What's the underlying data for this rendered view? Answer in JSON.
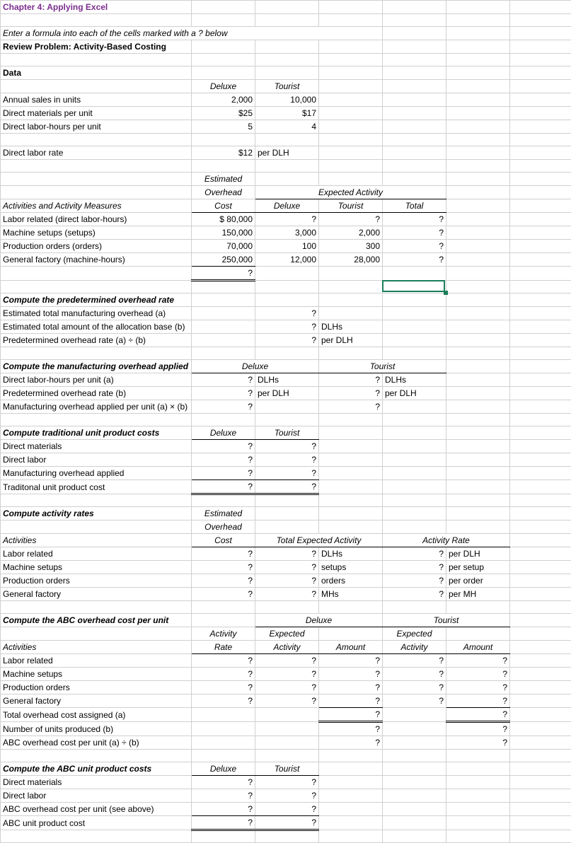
{
  "title": "Chapter 4: Applying Excel",
  "instruction": "Enter a formula into each of the cells marked with a ? below",
  "reviewProblem": "Review Problem: Activity-Based Costing",
  "dataHeader": "Data",
  "headers": {
    "deluxe": "Deluxe",
    "tourist": "Tourist",
    "total": "Total",
    "estimatedOverhead1": "Estimated",
    "estimatedOverhead2": "Overhead",
    "cost": "Cost",
    "expectedActivity": "Expected Activity",
    "activityRate": "Activity Rate",
    "activity": "Activity",
    "rate": "Rate",
    "expected": "Expected",
    "amount": "Amount",
    "totalExpectedActivity": "Total Expected Activity",
    "activities": "Activities",
    "activitiesMeasures": "Activities and Activity Measures"
  },
  "rows": {
    "annualSales": {
      "label": "Annual sales in units",
      "deluxe": "2,000",
      "tourist": "10,000"
    },
    "directMaterials": {
      "label": "Direct materials per unit",
      "deluxe": "$25",
      "tourist": "$17"
    },
    "dlhPerUnit": {
      "label": "Direct labor-hours per unit",
      "deluxe": "5",
      "tourist": "4"
    },
    "laborRate": {
      "label": "Direct labor rate",
      "amount": "$12",
      "unit": "per DLH"
    },
    "laborRelated": {
      "label": "Labor related (direct labor-hours)",
      "cost": "$     80,000",
      "deluxe": "?",
      "tourist": "?",
      "total": "?"
    },
    "machineSetups": {
      "label": "Machine setups (setups)",
      "cost": "150,000",
      "deluxe": "3,000",
      "tourist": "2,000",
      "total": "?"
    },
    "prodOrders": {
      "label": "Production orders (orders)",
      "cost": "70,000",
      "deluxe": "100",
      "tourist": "300",
      "total": "?"
    },
    "genFactory": {
      "label": "General factory (machine-hours)",
      "cost": "250,000",
      "deluxe": "12,000",
      "tourist": "28,000",
      "total": "?"
    },
    "sumQ": "?"
  },
  "sections": {
    "s1": "Compute the predetermined overhead rate",
    "s1r1": {
      "label": "Estimated total manufacturing overhead (a)",
      "v": "?"
    },
    "s1r2": {
      "label": "Estimated total amount of the allocation base (b)",
      "v": "?",
      "unit": "DLHs"
    },
    "s1r3": {
      "label": "Predetermined overhead rate (a) ÷ (b)",
      "v": "?",
      "unit": "per DLH"
    },
    "s2": "Compute the manufacturing overhead applied",
    "s2r1": {
      "label": "Direct labor-hours per unit (a)",
      "d": "?",
      "du": "DLHs",
      "t": "?",
      "tu": "DLHs"
    },
    "s2r2": {
      "label": "Predetermined overhead rate (b)",
      "d": "?",
      "du": "per DLH",
      "t": "?",
      "tu": "per DLH"
    },
    "s2r3": {
      "label": "Manufacturing overhead applied per unit (a) × (b)",
      "d": "?",
      "t": "?"
    },
    "s3": "Compute traditional unit product costs",
    "s3r1": {
      "label": "Direct materials",
      "d": "?",
      "t": "?"
    },
    "s3r2": {
      "label": "Direct labor",
      "d": "?",
      "t": "?"
    },
    "s3r3": {
      "label": "Manufacturing overhead applied",
      "d": "?",
      "t": "?"
    },
    "s3r4": {
      "label": "Traditonal unit product cost",
      "d": "?",
      "t": "?"
    },
    "s4": "Compute activity rates",
    "s4r1": {
      "label": "Labor related",
      "c": "?",
      "e": "?",
      "eu": "DLHs",
      "r": "?",
      "ru": "per DLH"
    },
    "s4r2": {
      "label": "Machine setups",
      "c": "?",
      "e": "?",
      "eu": "setups",
      "r": "?",
      "ru": "per setup"
    },
    "s4r3": {
      "label": "Production orders",
      "c": "?",
      "e": "?",
      "eu": "orders",
      "r": "?",
      "ru": "per order"
    },
    "s4r4": {
      "label": "General factory",
      "c": "?",
      "e": "?",
      "eu": "MHs",
      "r": "?",
      "ru": "per MH"
    },
    "s5": "Compute the ABC overhead cost per unit",
    "s5r1": {
      "label": "Labor related",
      "ar": "?",
      "de": "?",
      "da": "?",
      "te": "?",
      "ta": "?"
    },
    "s5r2": {
      "label": "Machine setups",
      "ar": "?",
      "de": "?",
      "da": "?",
      "te": "?",
      "ta": "?"
    },
    "s5r3": {
      "label": "Production orders",
      "ar": "?",
      "de": "?",
      "da": "?",
      "te": "?",
      "ta": "?"
    },
    "s5r4": {
      "label": "General factory",
      "ar": "?",
      "de": "?",
      "da": "?",
      "te": "?",
      "ta": "?"
    },
    "s5r5": {
      "label": "Total overhead cost assigned (a)",
      "da": "?",
      "ta": "?"
    },
    "s5r6": {
      "label": "Number of units produced (b)",
      "da": "?",
      "ta": "?"
    },
    "s5r7": {
      "label": "ABC overhead cost per unit (a) ÷ (b)",
      "da": "?",
      "ta": "?"
    },
    "s6": "Compute the ABC unit product costs",
    "s6r1": {
      "label": "Direct materials",
      "d": "?",
      "t": "?"
    },
    "s6r2": {
      "label": "Direct labor",
      "d": "?",
      "t": "?"
    },
    "s6r3": {
      "label": "ABC overhead cost per unit (see above)",
      "d": "?",
      "t": "?"
    },
    "s6r4": {
      "label": "ABC unit product cost",
      "d": "?",
      "t": "?"
    }
  },
  "colors": {
    "title": "#7b2d8e",
    "grid": "#d0d0d0",
    "border": "#000000",
    "selection": "#1a7f5a"
  }
}
